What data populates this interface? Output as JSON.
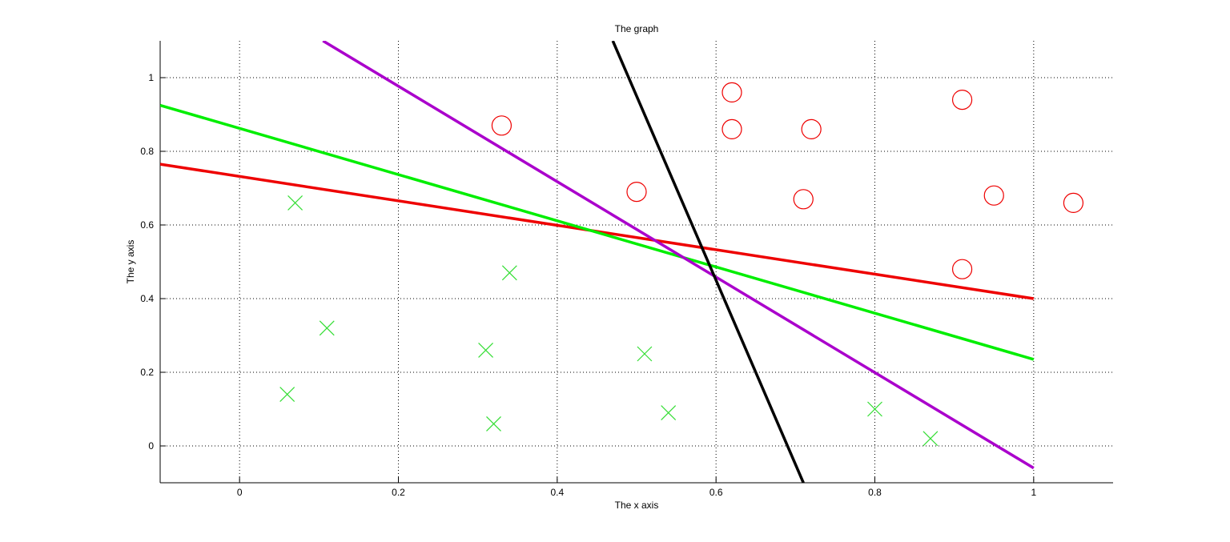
{
  "chart_data": {
    "type": "scatter",
    "title": "The graph",
    "xlabel": "The x axis",
    "ylabel": "The y axis",
    "xlim": [
      -0.1,
      1.1
    ],
    "ylim": [
      -0.1,
      1.1
    ],
    "xticks": [
      0,
      0.2,
      0.4,
      0.6,
      0.8,
      1
    ],
    "xtick_labels": [
      "0",
      "0.2",
      "0.4",
      "0.6",
      "0.8",
      "1"
    ],
    "yticks": [
      0,
      0.2,
      0.4,
      0.6,
      0.8,
      1
    ],
    "ytick_labels": [
      "0",
      "0.2",
      "0.4",
      "0.6",
      "0.8",
      "1"
    ],
    "grid": true,
    "grid_style": "dotted",
    "circles": {
      "marker": "circle",
      "color": "#ee0000",
      "points": [
        {
          "x": 0.33,
          "y": 0.87
        },
        {
          "x": 0.5,
          "y": 0.69
        },
        {
          "x": 0.62,
          "y": 0.96
        },
        {
          "x": 0.62,
          "y": 0.86
        },
        {
          "x": 0.72,
          "y": 0.86
        },
        {
          "x": 0.71,
          "y": 0.67
        },
        {
          "x": 0.91,
          "y": 0.94
        },
        {
          "x": 0.95,
          "y": 0.68
        },
        {
          "x": 1.05,
          "y": 0.66
        },
        {
          "x": 0.91,
          "y": 0.48
        }
      ]
    },
    "crosses": {
      "marker": "x",
      "color": "#33dd33",
      "points": [
        {
          "x": 0.07,
          "y": 0.66
        },
        {
          "x": 0.34,
          "y": 0.47
        },
        {
          "x": 0.11,
          "y": 0.32
        },
        {
          "x": 0.31,
          "y": 0.26
        },
        {
          "x": 0.51,
          "y": 0.25
        },
        {
          "x": 0.06,
          "y": 0.14
        },
        {
          "x": 0.32,
          "y": 0.06
        },
        {
          "x": 0.54,
          "y": 0.09
        },
        {
          "x": 0.8,
          "y": 0.1
        },
        {
          "x": 0.87,
          "y": 0.02
        }
      ]
    },
    "lines": [
      {
        "color": "#ee0000",
        "points": [
          {
            "x": -0.1,
            "y": 0.765
          },
          {
            "x": 1.0,
            "y": 0.4
          }
        ]
      },
      {
        "color": "#00ee00",
        "points": [
          {
            "x": -0.1,
            "y": 0.925
          },
          {
            "x": 1.0,
            "y": 0.235
          }
        ]
      },
      {
        "color": "#aa00cc",
        "points": [
          {
            "x": 0.105,
            "y": 1.1
          },
          {
            "x": 1.0,
            "y": -0.06
          }
        ]
      },
      {
        "color": "#000000",
        "points": [
          {
            "x": 0.47,
            "y": 1.1
          },
          {
            "x": 0.71,
            "y": -0.1
          }
        ]
      }
    ]
  }
}
